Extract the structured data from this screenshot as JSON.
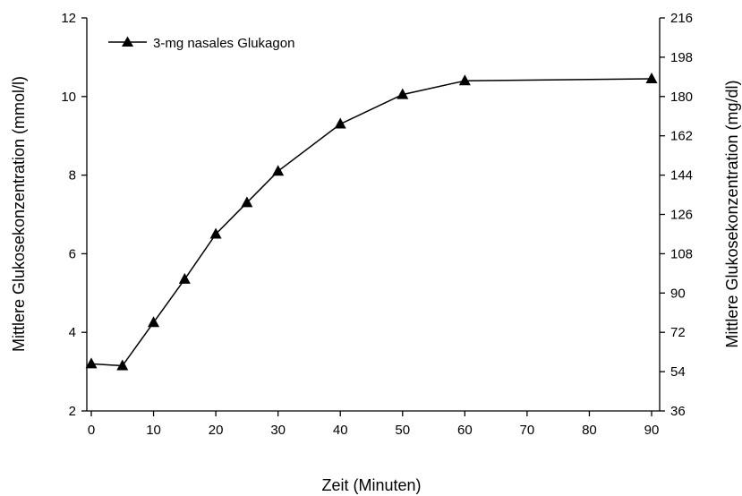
{
  "chart_data": {
    "type": "line",
    "xlabel": "Zeit (Minuten)",
    "ylabel_left": "Mittlere Glukosekonzentration (mmol/l)",
    "ylabel_right": "Mittlere Glukosekonzentration (mg/dl)",
    "xlim": [
      0,
      90
    ],
    "ylim_left": [
      2,
      12
    ],
    "ylim_right": [
      36,
      216
    ],
    "x_ticks": [
      "0",
      "10",
      "20",
      "30",
      "40",
      "50",
      "60",
      "70",
      "80",
      "90"
    ],
    "y_left_ticks": [
      "2",
      "4",
      "6",
      "8",
      "10",
      "12"
    ],
    "y_right_ticks": [
      "36",
      "54",
      "72",
      "90",
      "108",
      "126",
      "144",
      "162",
      "180",
      "198",
      "216"
    ],
    "grid": false,
    "legend_position": "top-left",
    "series": [
      {
        "name": "3-mg nasales Glukagon",
        "marker": "triangle",
        "color": "#000000",
        "x": [
          0,
          5,
          10,
          15,
          20,
          25,
          30,
          40,
          50,
          60,
          90
        ],
        "values": [
          3.2,
          3.15,
          4.25,
          5.35,
          6.5,
          7.3,
          8.1,
          9.3,
          10.05,
          10.4,
          10.45
        ]
      }
    ]
  }
}
